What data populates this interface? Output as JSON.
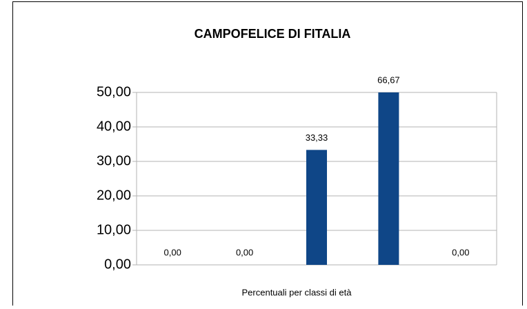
{
  "chart_data": {
    "type": "bar",
    "title": "CAMPOFELICE DI FITALIA",
    "x_label": "Percentuali per classi di età",
    "categories": [
      null,
      null,
      null,
      null,
      null
    ],
    "values": [
      0,
      0,
      33.33,
      66.67,
      0
    ],
    "value_labels": [
      "0,00",
      "0,00",
      "33,33",
      "66,67",
      "0,00"
    ],
    "color": "#0f4687",
    "ylim": [
      0,
      50
    ],
    "yticks": [
      {
        "value": 0,
        "label": "0,00"
      },
      {
        "value": 10,
        "label": "10,00"
      },
      {
        "value": 20,
        "label": "20,00"
      },
      {
        "value": 30,
        "label": "30,00"
      },
      {
        "value": 40,
        "label": "40,00"
      },
      {
        "value": 50,
        "label": "50,00"
      }
    ],
    "grid": true
  }
}
